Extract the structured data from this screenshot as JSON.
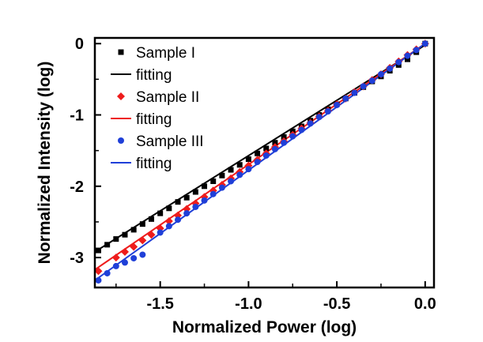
{
  "chart_data": {
    "type": "scatter",
    "xlabel": "Normalized Power (log)",
    "ylabel": "Normalized Intensity (log)",
    "xlim": [
      -1.87,
      0.05
    ],
    "ylim": [
      -3.42,
      0.08
    ],
    "xticks": [
      -1.5,
      -1.0,
      -0.5,
      0.0
    ],
    "xtick_labels": [
      "-1.5",
      "-1.0",
      "-0.5",
      "0.0"
    ],
    "yticks": [
      -3,
      -2,
      -1,
      0
    ],
    "ytick_labels": [
      "-3",
      "-2",
      "-1",
      "0"
    ],
    "legend_position": "top-left",
    "series": [
      {
        "name": "Sample I",
        "marker": "square",
        "color": "#000000",
        "x": [
          -1.85,
          -1.8,
          -1.75,
          -1.7,
          -1.65,
          -1.6,
          -1.55,
          -1.5,
          -1.45,
          -1.4,
          -1.35,
          -1.3,
          -1.25,
          -1.2,
          -1.15,
          -1.1,
          -1.05,
          -1.0,
          -0.95,
          -0.9,
          -0.85,
          -0.8,
          -0.75,
          -0.7,
          -0.65,
          -0.6,
          -0.55,
          -0.5,
          -0.45,
          -0.4,
          -0.35,
          -0.3,
          -0.25,
          -0.2,
          -0.15,
          -0.1,
          -0.05,
          0.0
        ],
        "y": [
          -2.9,
          -2.82,
          -2.74,
          -2.68,
          -2.61,
          -2.53,
          -2.46,
          -2.38,
          -2.31,
          -2.22,
          -2.16,
          -2.08,
          -2.0,
          -1.93,
          -1.85,
          -1.77,
          -1.7,
          -1.62,
          -1.54,
          -1.47,
          -1.39,
          -1.31,
          -1.23,
          -1.16,
          -1.08,
          -1.0,
          -0.92,
          -0.85,
          -0.77,
          -0.69,
          -0.61,
          -0.53,
          -0.46,
          -0.38,
          -0.3,
          -0.22,
          -0.12,
          0.0
        ]
      },
      {
        "name": "fitting",
        "type": "line",
        "color": "#000000",
        "x": [
          -1.87,
          0.0
        ],
        "y": [
          -2.92,
          -0.02
        ]
      },
      {
        "name": "Sample II",
        "marker": "diamond",
        "color": "#ee1c1c",
        "x": [
          -1.85,
          -1.75,
          -1.7,
          -1.65,
          -1.6,
          -1.55,
          -1.5,
          -1.45,
          -1.4,
          -1.35,
          -1.3,
          -1.25,
          -1.2,
          -1.15,
          -1.1,
          -1.05,
          -1.0,
          -0.95,
          -0.9,
          -0.85,
          -0.8,
          -0.75,
          -0.7,
          -0.65,
          -0.6,
          -0.55,
          -0.5,
          -0.45,
          -0.4,
          -0.35,
          -0.3,
          -0.25,
          -0.2,
          -0.15,
          -0.1,
          -0.05,
          0.0
        ],
        "y": [
          -3.19,
          -3.0,
          -2.92,
          -2.85,
          -2.76,
          -2.68,
          -2.59,
          -2.49,
          -2.41,
          -2.32,
          -2.24,
          -2.15,
          -2.06,
          -1.98,
          -1.89,
          -1.8,
          -1.71,
          -1.63,
          -1.54,
          -1.45,
          -1.37,
          -1.28,
          -1.19,
          -1.11,
          -1.02,
          -0.94,
          -0.85,
          -0.77,
          -0.68,
          -0.6,
          -0.51,
          -0.43,
          -0.34,
          -0.25,
          -0.16,
          -0.08,
          0.0
        ]
      },
      {
        "name": "fitting",
        "type": "line",
        "color": "#ee1c1c",
        "x": [
          -1.87,
          0.0
        ],
        "y": [
          -3.17,
          0.0
        ]
      },
      {
        "name": "Sample III",
        "marker": "circle",
        "color": "#1f3fd8",
        "x": [
          -1.85,
          -1.8,
          -1.75,
          -1.7,
          -1.65,
          -1.6,
          -1.5,
          -1.45,
          -1.4,
          -1.35,
          -1.3,
          -1.25,
          -1.2,
          -1.15,
          -1.1,
          -1.05,
          -1.0,
          -0.95,
          -0.9,
          -0.85,
          -0.8,
          -0.75,
          -0.7,
          -0.65,
          -0.6,
          -0.55,
          -0.5,
          -0.45,
          -0.4,
          -0.35,
          -0.3,
          -0.25,
          -0.2,
          -0.15,
          -0.1,
          -0.05,
          0.0
        ],
        "y": [
          -3.32,
          -3.22,
          -3.12,
          -3.07,
          -3.01,
          -2.96,
          -2.65,
          -2.56,
          -2.47,
          -2.38,
          -2.29,
          -2.2,
          -2.11,
          -2.02,
          -1.93,
          -1.84,
          -1.76,
          -1.66,
          -1.57,
          -1.48,
          -1.39,
          -1.3,
          -1.21,
          -1.12,
          -1.03,
          -0.95,
          -0.86,
          -0.77,
          -0.69,
          -0.6,
          -0.52,
          -0.43,
          -0.35,
          -0.26,
          -0.17,
          -0.09,
          0.0
        ]
      },
      {
        "name": "fitting",
        "type": "line",
        "color": "#1f3fd8",
        "x": [
          -1.87,
          0.0
        ],
        "y": [
          -3.32,
          0.0
        ]
      }
    ]
  }
}
